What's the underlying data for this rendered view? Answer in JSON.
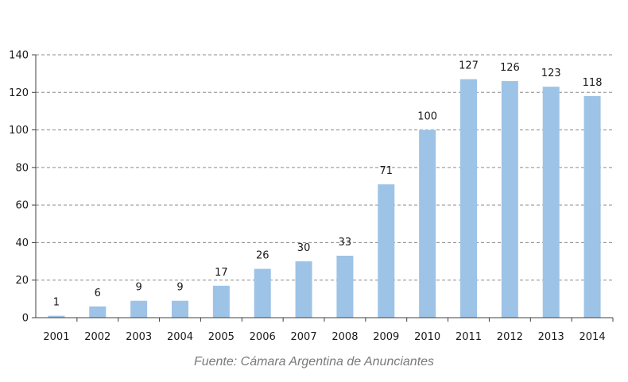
{
  "chart_data": {
    "type": "bar",
    "categories": [
      "2001",
      "2002",
      "2003",
      "2004",
      "2005",
      "2006",
      "2007",
      "2008",
      "2009",
      "2010",
      "2011",
      "2012",
      "2013",
      "2014"
    ],
    "values": [
      1,
      6,
      9,
      9,
      17,
      26,
      30,
      33,
      71,
      100,
      127,
      126,
      123,
      118
    ],
    "title": "",
    "xlabel": "",
    "ylabel": "",
    "ylim": [
      0,
      140
    ],
    "yticks": [
      0,
      20,
      40,
      60,
      80,
      100,
      120,
      140
    ],
    "grid": true,
    "legend": "none",
    "bar_color": "#9dc3e6",
    "gridline_color": "#8c8c8c",
    "axis_color": "#404040"
  },
  "source_note": "Fuente: Cámara Argentina de Anunciantes"
}
